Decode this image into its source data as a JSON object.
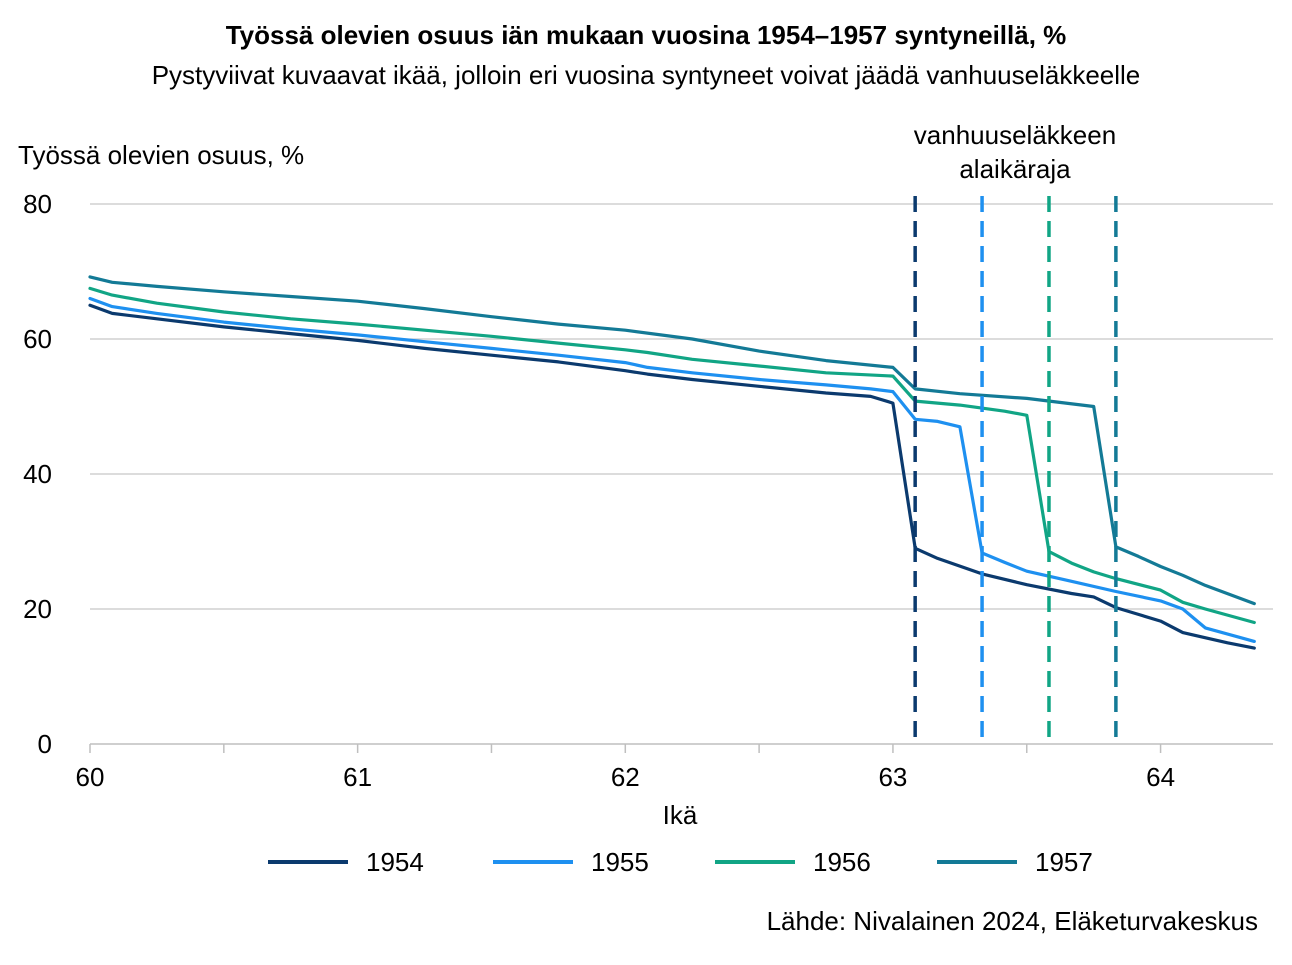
{
  "chart_data": {
    "type": "line",
    "title": "Työssä olevien osuus iän mukaan vuosina 1954–1957 syntyneillä, %",
    "subtitle": "Pystyviivat kuvaavat ikää, jolloin eri vuosina syntyneet voivat jäädä vanhuuseläkkeelle",
    "ylabel": "Työssä olevien osuus, %",
    "xlabel": "Ikä",
    "xlim": [
      60,
      64.42
    ],
    "ylim": [
      0,
      80
    ],
    "x_ticks": [
      60,
      61,
      62,
      63,
      64
    ],
    "y_ticks": [
      0,
      20,
      40,
      60,
      80
    ],
    "grid": "horizontal",
    "legend_position": "bottom",
    "annotation": {
      "lines": [
        "vanhuuseläkkeen",
        "alaikäraja"
      ],
      "reference_ages": [
        63.083,
        63.333,
        63.583,
        63.833
      ]
    },
    "series": [
      {
        "name": "1954",
        "color": "#0b3a6e",
        "x": [
          60.0,
          60.083,
          60.25,
          60.5,
          60.75,
          61.0,
          61.25,
          61.5,
          61.75,
          62.0,
          62.083,
          62.25,
          62.5,
          62.75,
          62.917,
          63.0,
          63.083,
          63.167,
          63.333,
          63.5,
          63.667,
          63.75,
          63.833,
          63.917,
          64.0,
          64.083,
          64.25,
          64.35
        ],
        "values": [
          65.0,
          63.8,
          63.0,
          61.8,
          60.8,
          59.8,
          58.6,
          57.6,
          56.6,
          55.3,
          54.8,
          54.0,
          53.0,
          52.0,
          51.5,
          50.5,
          29.0,
          27.5,
          25.2,
          23.6,
          22.3,
          21.8,
          20.2,
          19.2,
          18.2,
          16.5,
          15.0,
          14.2
        ]
      },
      {
        "name": "1955",
        "color": "#1e90f0",
        "x": [
          60.0,
          60.083,
          60.25,
          60.5,
          60.75,
          61.0,
          61.25,
          61.5,
          61.75,
          62.0,
          62.083,
          62.25,
          62.5,
          62.75,
          62.917,
          63.0,
          63.083,
          63.167,
          63.25,
          63.333,
          63.417,
          63.5,
          63.667,
          63.833,
          64.0,
          64.083,
          64.167,
          64.35
        ],
        "values": [
          66.0,
          64.8,
          63.8,
          62.5,
          61.5,
          60.6,
          59.6,
          58.6,
          57.6,
          56.5,
          55.8,
          55.0,
          54.0,
          53.2,
          52.6,
          52.2,
          48.1,
          47.8,
          47.0,
          28.3,
          26.9,
          25.6,
          24.1,
          22.6,
          21.2,
          20.0,
          17.2,
          15.2
        ]
      },
      {
        "name": "1956",
        "color": "#11a585",
        "x": [
          60.0,
          60.083,
          60.25,
          60.5,
          60.75,
          61.0,
          61.25,
          61.5,
          61.75,
          62.0,
          62.083,
          62.25,
          62.5,
          62.75,
          63.0,
          63.083,
          63.25,
          63.417,
          63.5,
          63.583,
          63.667,
          63.75,
          63.833,
          64.0,
          64.083,
          64.167,
          64.35
        ],
        "values": [
          67.5,
          66.5,
          65.3,
          64.0,
          63.0,
          62.2,
          61.3,
          60.4,
          59.4,
          58.4,
          58.0,
          57.0,
          56.0,
          55.0,
          54.5,
          50.8,
          50.2,
          49.3,
          48.7,
          28.5,
          26.8,
          25.5,
          24.5,
          22.8,
          21.0,
          20.0,
          18.0
        ]
      },
      {
        "name": "1957",
        "color": "#137a96",
        "x": [
          60.0,
          60.083,
          60.25,
          60.5,
          60.75,
          61.0,
          61.25,
          61.5,
          61.75,
          62.0,
          62.25,
          62.5,
          62.75,
          63.0,
          63.083,
          63.25,
          63.5,
          63.75,
          63.833,
          63.917,
          64.0,
          64.083,
          64.167,
          64.35
        ],
        "values": [
          69.2,
          68.4,
          67.8,
          67.0,
          66.3,
          65.6,
          64.5,
          63.3,
          62.2,
          61.3,
          60.0,
          58.2,
          56.8,
          55.8,
          52.6,
          51.9,
          51.2,
          50.0,
          29.2,
          27.8,
          26.3,
          25.0,
          23.5,
          20.8
        ]
      }
    ]
  },
  "source": "Lähde: Nivalainen 2024, Eläketurvakeskus",
  "colors": {
    "grid": "#c8c8c8",
    "axis": "#bfbfbf"
  }
}
